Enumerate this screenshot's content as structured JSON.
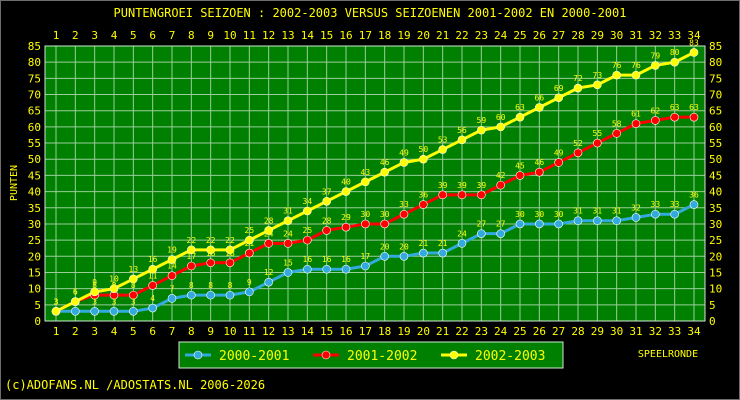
{
  "chart_data": {
    "type": "line",
    "title": "PUNTENGROEI  SEIZOEN : 2002-2003 VERSUS SEIZOENEN 2001-2002 EN 2000-2001",
    "xlabel": "SPEELRONDE",
    "ylabel": "PUNTEN",
    "x": [
      1,
      2,
      3,
      4,
      5,
      6,
      7,
      8,
      9,
      10,
      11,
      12,
      13,
      14,
      15,
      16,
      17,
      18,
      19,
      20,
      21,
      22,
      23,
      24,
      25,
      26,
      27,
      28,
      29,
      30,
      31,
      32,
      33,
      34
    ],
    "ylim": [
      0,
      85
    ],
    "yticks": [
      0,
      5,
      10,
      15,
      20,
      25,
      30,
      35,
      40,
      45,
      50,
      55,
      60,
      65,
      70,
      75,
      80,
      85
    ],
    "grid": true,
    "legend_position": "bottom",
    "series": [
      {
        "name": "2000-2001",
        "color": "#33aadd",
        "values": [
          3,
          3,
          3,
          3,
          3,
          4,
          7,
          8,
          8,
          8,
          9,
          12,
          15,
          16,
          16,
          16,
          17,
          20,
          20,
          21,
          21,
          24,
          27,
          27,
          30,
          30,
          30,
          31,
          31,
          31,
          32,
          33,
          33,
          36
        ]
      },
      {
        "name": "2001-2002",
        "color": "#ff0000",
        "values": [
          3,
          6,
          8,
          8,
          8,
          11,
          14,
          17,
          18,
          18,
          21,
          24,
          24,
          25,
          28,
          29,
          30,
          30,
          33,
          36,
          39,
          39,
          39,
          42,
          45,
          46,
          49,
          52,
          55,
          58,
          61,
          62,
          63,
          63
        ]
      },
      {
        "name": "2002-2003",
        "color": "#ffff00",
        "values": [
          3,
          6,
          9,
          10,
          13,
          16,
          19,
          22,
          22,
          22,
          25,
          28,
          31,
          34,
          37,
          40,
          43,
          46,
          49,
          50,
          53,
          56,
          59,
          60,
          63,
          66,
          69,
          72,
          73,
          76,
          76,
          79,
          80,
          83
        ]
      }
    ]
  },
  "footer": {
    "credit": "(c)ADOFANS.NL /ADOSTATS.NL 2006-2026"
  }
}
